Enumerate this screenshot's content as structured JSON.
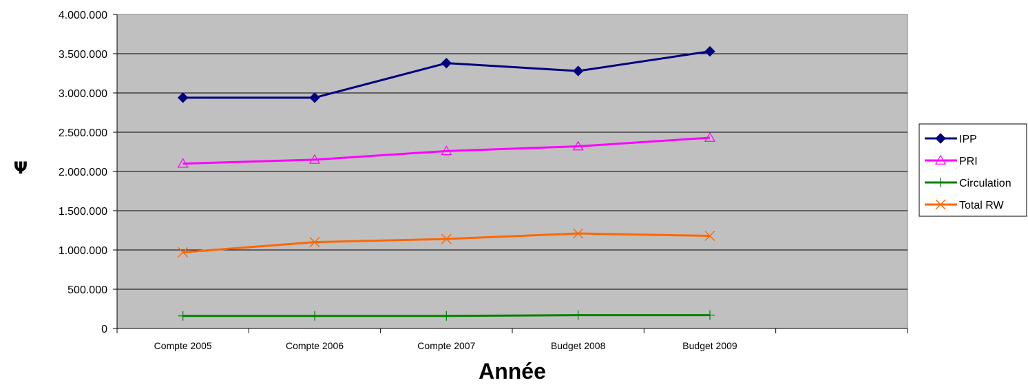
{
  "chart_data": {
    "type": "line",
    "categories": [
      "Compte 2005",
      "Compte 2006",
      "Compte 2007",
      "Budget 2008",
      "Budget 2009"
    ],
    "series": [
      {
        "name": "IPP",
        "values": [
          2940000,
          2940000,
          3380000,
          3280000,
          3530000
        ],
        "color": "#000080",
        "marker": "diamond"
      },
      {
        "name": "PRI",
        "values": [
          2100000,
          2150000,
          2260000,
          2320000,
          2430000
        ],
        "color": "#FF00FF",
        "marker": "triangle"
      },
      {
        "name": "Circulation",
        "values": [
          160000,
          160000,
          160000,
          170000,
          170000
        ],
        "color": "#008000",
        "marker": "plus"
      },
      {
        "name": "Total RW",
        "values": [
          970000,
          1100000,
          1140000,
          1210000,
          1180000
        ],
        "color": "#FF6600",
        "marker": "x"
      }
    ],
    "xlabel": "Année",
    "ylabel": "Ψ",
    "ylim": [
      0,
      4000000
    ],
    "yticks": [
      "0",
      "500.000",
      "1.000.000",
      "1.500.000",
      "2.000.000",
      "2.500.000",
      "3.000.000",
      "3.500.000",
      "4.000.000"
    ],
    "plot_background": "#C0C0C0",
    "grid": true,
    "legend_position": "right"
  }
}
